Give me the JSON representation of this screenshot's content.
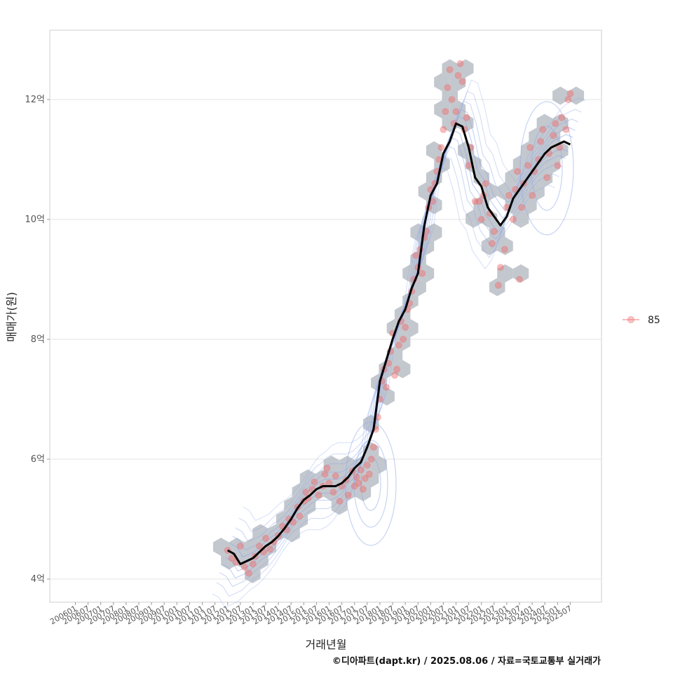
{
  "chart_data": {
    "type": "scatter",
    "xlabel": "거래년월",
    "ylabel": "매매가(원)",
    "caption": "©디아파트(dapt.kr) / 2025.08.06 / 자료=국토교통부 실거래가",
    "x_ticks": [
      "200601",
      "200607",
      "200701",
      "200707",
      "200801",
      "200807",
      "200901",
      "200907",
      "201001",
      "201007",
      "201101",
      "201107",
      "201201",
      "201207",
      "201301",
      "201307",
      "201401",
      "201407",
      "201501",
      "201507",
      "201601",
      "201607",
      "201701",
      "201707",
      "201801",
      "201807",
      "201901",
      "201907",
      "202001",
      "202007",
      "202101",
      "202107",
      "202201",
      "202207",
      "202301",
      "202307",
      "202401",
      "202407",
      "202501",
      "202507"
    ],
    "y_ticks": [
      {
        "value": 4,
        "label": "4억"
      },
      {
        "value": 6,
        "label": "6억"
      },
      {
        "value": 8,
        "label": "8억"
      },
      {
        "value": 10,
        "label": "10억"
      },
      {
        "value": 12,
        "label": "12억"
      }
    ],
    "xlim": [
      "200601",
      "202507"
    ],
    "ylim_eok": [
      3.8,
      13.2
    ],
    "grid": "horizontal",
    "legend": {
      "position": "right",
      "entries": [
        {
          "label": "85",
          "color": "#f08080"
        }
      ]
    },
    "colors": {
      "points": "#f26b6b",
      "hexbin": "#b8bec6",
      "contours": "#8fa9e8",
      "trend": "#000000"
    },
    "trend_line": {
      "x": [
        "201201",
        "201204",
        "201207",
        "201210",
        "201301",
        "201304",
        "201307",
        "201310",
        "201401",
        "201404",
        "201407",
        "201410",
        "201501",
        "201504",
        "201507",
        "201510",
        "201601",
        "201604",
        "201607",
        "201610",
        "201701",
        "201704",
        "201707",
        "201710",
        "201801",
        "201804",
        "201807",
        "201810",
        "201901",
        "201904",
        "201907",
        "201910",
        "202001",
        "202004",
        "202007",
        "202010",
        "202101",
        "202104",
        "202107",
        "202110",
        "202201",
        "202204",
        "202207",
        "202210",
        "202301",
        "202304",
        "202307",
        "202310",
        "202401",
        "202404",
        "202407",
        "202410",
        "202501",
        "202504",
        "202507"
      ],
      "y": [
        4.48,
        4.42,
        4.25,
        4.3,
        4.35,
        4.45,
        4.55,
        4.62,
        4.72,
        4.85,
        5.0,
        5.18,
        5.32,
        5.4,
        5.5,
        5.55,
        5.55,
        5.55,
        5.6,
        5.7,
        5.85,
        5.95,
        6.2,
        6.5,
        7.3,
        7.65,
        8.0,
        8.3,
        8.5,
        8.85,
        9.1,
        9.9,
        10.4,
        10.6,
        11.1,
        11.3,
        11.6,
        11.55,
        11.2,
        10.7,
        10.55,
        10.2,
        10.05,
        9.9,
        10.05,
        10.35,
        10.5,
        10.65,
        10.8,
        10.95,
        11.1,
        11.2,
        11.25,
        11.3,
        11.25
      ]
    },
    "points": [
      [
        "201201",
        4.48
      ],
      [
        "201203",
        4.35
      ],
      [
        "201205",
        4.28
      ],
      [
        "201207",
        4.55
      ],
      [
        "201209",
        4.2
      ],
      [
        "201211",
        4.1
      ],
      [
        "201301",
        4.25
      ],
      [
        "201302",
        4.38
      ],
      [
        "201304",
        4.55
      ],
      [
        "201306",
        4.45
      ],
      [
        "201307",
        4.68
      ],
      [
        "201309",
        4.5
      ],
      [
        "201311",
        4.62
      ],
      [
        "201401",
        4.72
      ],
      [
        "201403",
        4.88
      ],
      [
        "201405",
        4.82
      ],
      [
        "201406",
        5.0
      ],
      [
        "201408",
        4.95
      ],
      [
        "201410",
        5.2
      ],
      [
        "201411",
        5.05
      ],
      [
        "201501",
        5.3
      ],
      [
        "201502",
        5.45
      ],
      [
        "201503",
        5.35
      ],
      [
        "201505",
        5.5
      ],
      [
        "201506",
        5.62
      ],
      [
        "201508",
        5.4
      ],
      [
        "201510",
        5.55
      ],
      [
        "201511",
        5.75
      ],
      [
        "201512",
        5.85
      ],
      [
        "201601",
        5.6
      ],
      [
        "201603",
        5.45
      ],
      [
        "201604",
        5.72
      ],
      [
        "201606",
        5.3
      ],
      [
        "201607",
        5.55
      ],
      [
        "201609",
        5.65
      ],
      [
        "201610",
        5.4
      ],
      [
        "201612",
        5.8
      ],
      [
        "201701",
        5.55
      ],
      [
        "201702",
        5.7
      ],
      [
        "201703",
        5.6
      ],
      [
        "201704",
        5.82
      ],
      [
        "201705",
        5.5
      ],
      [
        "201706",
        5.68
      ],
      [
        "201707",
        5.9
      ],
      [
        "201708",
        5.75
      ],
      [
        "201709",
        6.0
      ],
      [
        "201710",
        6.2
      ],
      [
        "201711",
        6.5
      ],
      [
        "201712",
        6.7
      ],
      [
        "201801",
        7.0
      ],
      [
        "201802",
        7.3
      ],
      [
        "201803",
        7.5
      ],
      [
        "201804",
        7.2
      ],
      [
        "201805",
        7.6
      ],
      [
        "201806",
        7.8
      ],
      [
        "201807",
        8.1
      ],
      [
        "201808",
        7.4
      ],
      [
        "201809",
        7.5
      ],
      [
        "201810",
        7.9
      ],
      [
        "201811",
        8.3
      ],
      [
        "201812",
        8.0
      ],
      [
        "201901",
        8.2
      ],
      [
        "201902",
        8.5
      ],
      [
        "201903",
        8.6
      ],
      [
        "201904",
        8.8
      ],
      [
        "201905",
        9.0
      ],
      [
        "201906",
        9.4
      ],
      [
        "201907",
        9.2
      ],
      [
        "201908",
        9.5
      ],
      [
        "201909",
        9.1
      ],
      [
        "201910",
        9.7
      ],
      [
        "201911",
        9.8
      ],
      [
        "201912",
        10.2
      ],
      [
        "202001",
        10.5
      ],
      [
        "202002",
        10.3
      ],
      [
        "202003",
        10.6
      ],
      [
        "202004",
        10.8
      ],
      [
        "202005",
        11.0
      ],
      [
        "202006",
        11.2
      ],
      [
        "202007",
        11.5
      ],
      [
        "202008",
        11.8
      ],
      [
        "202009",
        12.2
      ],
      [
        "202010",
        12.5
      ],
      [
        "202011",
        12.0
      ],
      [
        "202012",
        11.6
      ],
      [
        "202101",
        11.8
      ],
      [
        "202102",
        12.4
      ],
      [
        "202103",
        12.6
      ],
      [
        "202104",
        12.3
      ],
      [
        "202105",
        11.5
      ],
      [
        "202106",
        11.7
      ],
      [
        "202107",
        10.9
      ],
      [
        "202108",
        11.2
      ],
      [
        "202110",
        10.3
      ],
      [
        "202112",
        10.3
      ],
      [
        "202201",
        10.0
      ],
      [
        "202202",
        10.4
      ],
      [
        "202203",
        10.6
      ],
      [
        "202205",
        10.1
      ],
      [
        "202206",
        9.6
      ],
      [
        "202207",
        9.8
      ],
      [
        "202209",
        8.9
      ],
      [
        "202210",
        9.2
      ],
      [
        "202212",
        9.5
      ],
      [
        "202301",
        10.2
      ],
      [
        "202302",
        10.4
      ],
      [
        "202304",
        10.0
      ],
      [
        "202305",
        10.5
      ],
      [
        "202306",
        10.8
      ],
      [
        "202307",
        9.0
      ],
      [
        "202308",
        10.2
      ],
      [
        "202309",
        10.6
      ],
      [
        "202311",
        10.9
      ],
      [
        "202312",
        11.2
      ],
      [
        "202401",
        10.4
      ],
      [
        "202402",
        10.8
      ],
      [
        "202404",
        11.0
      ],
      [
        "202405",
        11.3
      ],
      [
        "202406",
        11.5
      ],
      [
        "202408",
        10.7
      ],
      [
        "202409",
        11.1
      ],
      [
        "202411",
        11.4
      ],
      [
        "202412",
        11.6
      ],
      [
        "202501",
        10.9
      ],
      [
        "202502",
        11.2
      ],
      [
        "202503",
        11.7
      ],
      [
        "202505",
        11.5
      ],
      [
        "202506",
        12.0
      ],
      [
        "202507",
        12.1
      ]
    ]
  }
}
